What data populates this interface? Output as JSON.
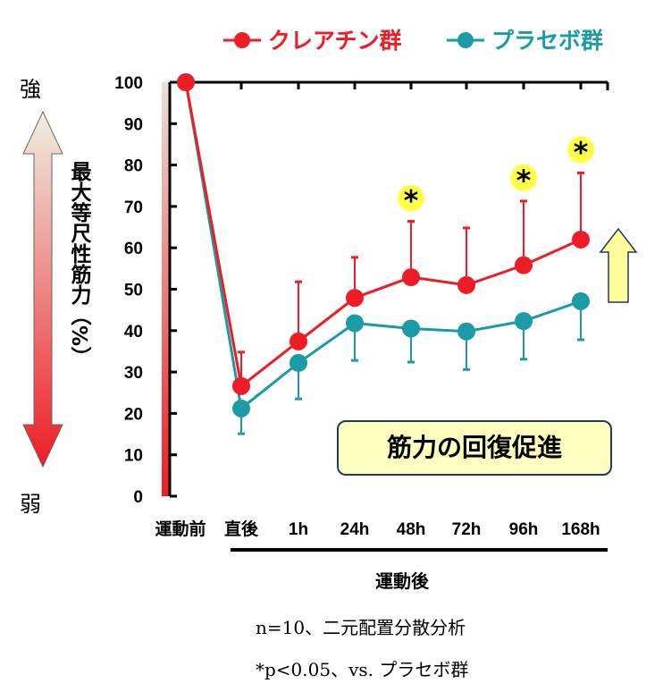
{
  "chart_data": {
    "type": "line",
    "categories": [
      "運動前",
      "直後",
      "1h",
      "24h",
      "48h",
      "72h",
      "96h",
      "168h"
    ],
    "series": [
      {
        "name": "クレアチン群",
        "color": "#ee1c24",
        "values": [
          100,
          26.6,
          37.4,
          47.9,
          52.9,
          51.0,
          55.8,
          62.0
        ],
        "error_upper": [
          null,
          34.8,
          51.8,
          57.7,
          66.4,
          64.8,
          71.3,
          78.1
        ]
      },
      {
        "name": "プラセボ群",
        "color": "#1a9ba6",
        "values": [
          100,
          21.2,
          32.2,
          41.8,
          40.5,
          39.8,
          42.3,
          47.1
        ],
        "error_lower": [
          null,
          15.1,
          23.5,
          32.8,
          32.4,
          30.6,
          33.1,
          37.8
        ]
      }
    ],
    "significant": [
      "48h",
      "96h",
      "168h"
    ],
    "significance_mark": "*",
    "ylabel": "最大等尺性筋力（%）",
    "ylim": [
      0,
      100
    ],
    "yticks": [
      0,
      10,
      20,
      30,
      40,
      50,
      60,
      70,
      80,
      90,
      100
    ],
    "y_strong_label": "強",
    "y_weak_label": "弱",
    "post_label": "運動後",
    "callout": "筋力の回復促進",
    "legend_position": "top",
    "footnote1": "n=10、二元配置分散分析",
    "footnote2": "*p<0.05、vs. プラセボ群"
  }
}
